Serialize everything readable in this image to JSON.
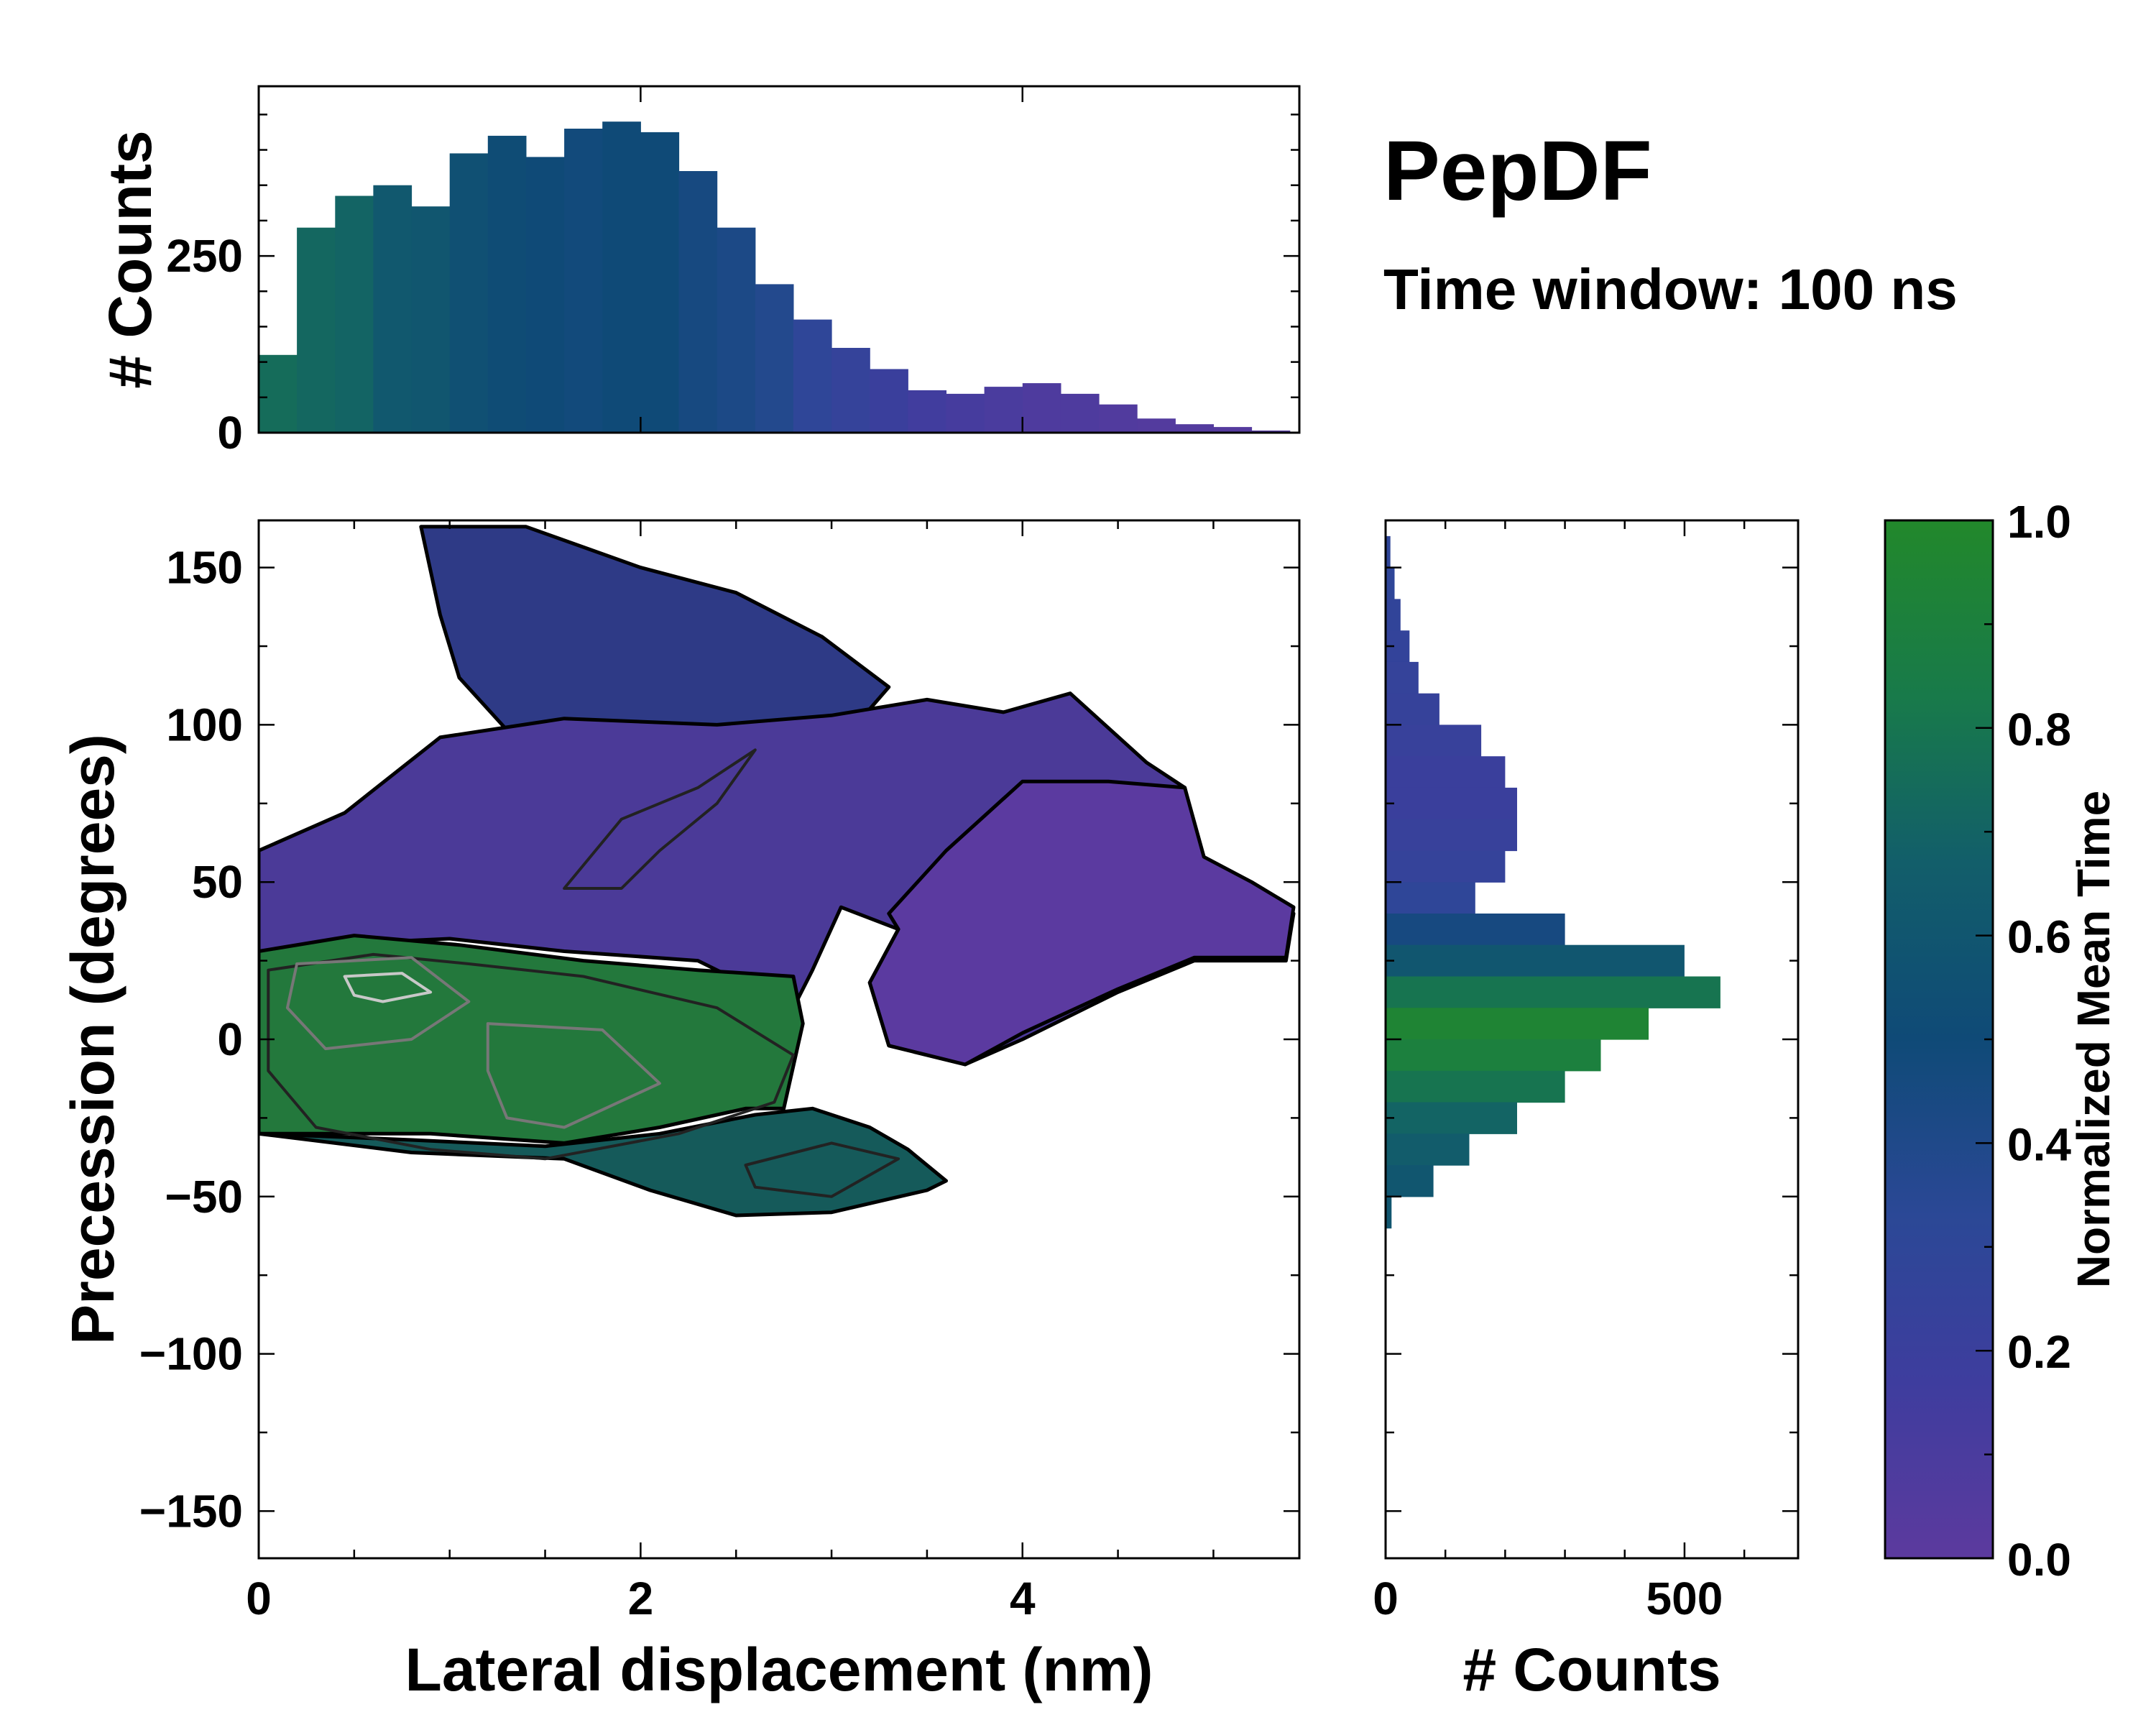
{
  "title": "PepDF",
  "subtitle": "Time window: 100 ns",
  "chart_data": {
    "type": "heatmap",
    "main": {
      "xlabel": "Lateral displacement (nm)",
      "ylabel": "Precession (degrees)",
      "xlim": [
        0,
        5.45
      ],
      "ylim": [
        -165,
        165
      ],
      "xticks": [
        0,
        2,
        4
      ],
      "yticks": [
        -150,
        -100,
        -50,
        0,
        50,
        100,
        150
      ],
      "xtick_labels": [
        "0",
        "2",
        "4"
      ],
      "ytick_labels": [
        "−150",
        "−100",
        "−50",
        "0",
        "50",
        "100",
        "150"
      ],
      "regions": [
        {
          "name": "upper-blue-lobe",
          "color": "#2e3a86",
          "outline": [
            [
              0.85,
              163
            ],
            [
              1.4,
              163
            ],
            [
              2.0,
              150
            ],
            [
              2.5,
              142
            ],
            [
              2.95,
              128
            ],
            [
              3.3,
              112
            ],
            [
              3.1,
              98
            ],
            [
              2.4,
              90
            ],
            [
              1.8,
              92
            ],
            [
              1.35,
              95
            ],
            [
              1.05,
              115
            ],
            [
              0.95,
              135
            ]
          ]
        },
        {
          "name": "purple-central-band",
          "color": "#4b3a98",
          "outline": [
            [
              0.0,
              60
            ],
            [
              0.45,
              72
            ],
            [
              0.95,
              96
            ],
            [
              1.6,
              102
            ],
            [
              2.4,
              100
            ],
            [
              3.0,
              103
            ],
            [
              3.5,
              108
            ],
            [
              3.9,
              104
            ],
            [
              4.25,
              110
            ],
            [
              4.65,
              88
            ],
            [
              4.85,
              80
            ],
            [
              4.95,
              55
            ],
            [
              5.2,
              50
            ],
            [
              5.42,
              40
            ],
            [
              5.38,
              25
            ],
            [
              4.9,
              25
            ],
            [
              4.5,
              15
            ],
            [
              4.0,
              0
            ],
            [
              3.7,
              -8
            ],
            [
              3.3,
              -2
            ],
            [
              3.2,
              18
            ],
            [
              3.35,
              35
            ],
            [
              3.05,
              42
            ],
            [
              2.9,
              22
            ],
            [
              2.8,
              10
            ],
            [
              2.3,
              25
            ],
            [
              1.6,
              28
            ],
            [
              1.0,
              32
            ],
            [
              0.3,
              30
            ],
            [
              0.0,
              28
            ]
          ]
        },
        {
          "name": "right-lobe",
          "color": "#5b3aa0",
          "outline": [
            [
              3.3,
              40
            ],
            [
              3.6,
              60
            ],
            [
              4.0,
              82
            ],
            [
              4.45,
              82
            ],
            [
              4.85,
              80
            ],
            [
              4.95,
              58
            ],
            [
              5.2,
              50
            ],
            [
              5.42,
              42
            ],
            [
              5.38,
              26
            ],
            [
              4.9,
              26
            ],
            [
              4.5,
              16
            ],
            [
              4.0,
              2
            ],
            [
              3.7,
              -8
            ],
            [
              3.3,
              -2
            ],
            [
              3.2,
              18
            ],
            [
              3.35,
              35
            ]
          ]
        },
        {
          "name": "green-core",
          "color": "#23783c",
          "outline": [
            [
              0.0,
              28
            ],
            [
              0.5,
              33
            ],
            [
              1.05,
              30
            ],
            [
              1.7,
              25
            ],
            [
              2.3,
              22
            ],
            [
              2.8,
              20
            ],
            [
              2.85,
              5
            ],
            [
              2.75,
              -22
            ],
            [
              2.55,
              -22
            ],
            [
              2.1,
              -28
            ],
            [
              1.6,
              -33
            ],
            [
              0.9,
              -30
            ],
            [
              0.0,
              -30
            ]
          ]
        },
        {
          "name": "lower-teal-lobe",
          "color": "#155a5a",
          "outline": [
            [
              0.0,
              -30
            ],
            [
              0.8,
              -36
            ],
            [
              1.6,
              -38
            ],
            [
              2.05,
              -48
            ],
            [
              2.5,
              -56
            ],
            [
              3.0,
              -55
            ],
            [
              3.5,
              -48
            ],
            [
              3.6,
              -45
            ],
            [
              3.4,
              -35
            ],
            [
              3.2,
              -28
            ],
            [
              2.9,
              -22
            ],
            [
              2.6,
              -24
            ],
            [
              2.1,
              -30
            ],
            [
              1.5,
              -34
            ],
            [
              0.8,
              -32
            ]
          ]
        }
      ],
      "contours": [
        {
          "level": "low",
          "color": "#222222",
          "points": [
            [
              0.05,
              22
            ],
            [
              0.6,
              27
            ],
            [
              1.1,
              24
            ],
            [
              1.7,
              20
            ],
            [
              2.4,
              10
            ],
            [
              2.8,
              -5
            ],
            [
              2.7,
              -20
            ],
            [
              2.2,
              -30
            ],
            [
              1.5,
              -38
            ],
            [
              0.9,
              -35
            ],
            [
              0.3,
              -28
            ],
            [
              0.05,
              -10
            ]
          ]
        },
        {
          "level": "low",
          "color": "#222222",
          "points": [
            [
              1.6,
              48
            ],
            [
              1.9,
              70
            ],
            [
              2.3,
              80
            ],
            [
              2.6,
              92
            ],
            [
              2.4,
              75
            ],
            [
              2.1,
              60
            ],
            [
              1.9,
              48
            ]
          ]
        },
        {
          "level": "low",
          "color": "#222222",
          "points": [
            [
              2.55,
              -40
            ],
            [
              3.0,
              -33
            ],
            [
              3.35,
              -38
            ],
            [
              3.0,
              -50
            ],
            [
              2.6,
              -47
            ]
          ]
        },
        {
          "level": "mid",
          "color": "#777777",
          "points": [
            [
              0.2,
              24
            ],
            [
              0.8,
              26
            ],
            [
              1.1,
              12
            ],
            [
              0.8,
              0
            ],
            [
              0.35,
              -3
            ],
            [
              0.15,
              10
            ]
          ]
        },
        {
          "level": "mid",
          "color": "#777777",
          "points": [
            [
              1.2,
              5
            ],
            [
              1.8,
              3
            ],
            [
              2.1,
              -14
            ],
            [
              1.6,
              -28
            ],
            [
              1.3,
              -25
            ],
            [
              1.2,
              -10
            ]
          ]
        },
        {
          "level": "high",
          "color": "#c8c8c8",
          "points": [
            [
              0.45,
              20
            ],
            [
              0.75,
              21
            ],
            [
              0.9,
              15
            ],
            [
              0.65,
              12
            ],
            [
              0.5,
              14
            ]
          ]
        }
      ]
    },
    "top_histogram": {
      "ylabel": "# Counts",
      "ylim": [
        0,
        490
      ],
      "yticks": [
        0,
        250
      ],
      "ytick_labels": [
        "0",
        "250"
      ],
      "bin_width": 0.2,
      "x": [
        0.1,
        0.3,
        0.5,
        0.7,
        0.9,
        1.1,
        1.3,
        1.5,
        1.7,
        1.9,
        2.1,
        2.3,
        2.5,
        2.7,
        2.9,
        3.1,
        3.3,
        3.5,
        3.7,
        3.9,
        4.1,
        4.3,
        4.5,
        4.7,
        4.9,
        5.1,
        5.3
      ],
      "counts": [
        110,
        290,
        335,
        350,
        320,
        395,
        420,
        390,
        430,
        440,
        425,
        370,
        290,
        210,
        160,
        120,
        90,
        60,
        55,
        65,
        70,
        55,
        40,
        20,
        12,
        8,
        3
      ],
      "time": [
        0.75,
        0.72,
        0.7,
        0.62,
        0.6,
        0.55,
        0.52,
        0.5,
        0.48,
        0.5,
        0.5,
        0.45,
        0.42,
        0.38,
        0.3,
        0.25,
        0.2,
        0.15,
        0.12,
        0.1,
        0.08,
        0.08,
        0.06,
        0.05,
        0.05,
        0.04,
        0.04
      ]
    },
    "right_histogram": {
      "xlabel": "# Counts",
      "xlim": [
        0,
        690
      ],
      "xticks": [
        0,
        500
      ],
      "xtick_labels": [
        "0",
        "500"
      ],
      "bin_width": 10,
      "y": [
        155,
        145,
        135,
        125,
        115,
        105,
        95,
        85,
        75,
        65,
        55,
        45,
        35,
        25,
        15,
        5,
        -5,
        -15,
        -25,
        -35,
        -45,
        -55
      ],
      "counts": [
        8,
        15,
        25,
        40,
        55,
        90,
        160,
        200,
        220,
        220,
        200,
        150,
        300,
        500,
        560,
        440,
        360,
        300,
        220,
        140,
        80,
        10
      ],
      "time": [
        0.3,
        0.3,
        0.28,
        0.26,
        0.25,
        0.24,
        0.22,
        0.2,
        0.2,
        0.22,
        0.25,
        0.3,
        0.45,
        0.6,
        0.8,
        0.95,
        0.9,
        0.8,
        0.7,
        0.65,
        0.6,
        0.6
      ]
    },
    "colorbar": {
      "label": "Normalized Mean Time",
      "range": [
        0,
        1
      ],
      "ticks": [
        "0.0",
        "0.2",
        "0.4",
        "0.6",
        "0.8",
        "1.0"
      ],
      "stops": [
        "#5c3a9e",
        "#3e3d9e",
        "#2b4896",
        "#0f4a77",
        "#125e6a",
        "#187a4a",
        "#22882b"
      ]
    }
  }
}
